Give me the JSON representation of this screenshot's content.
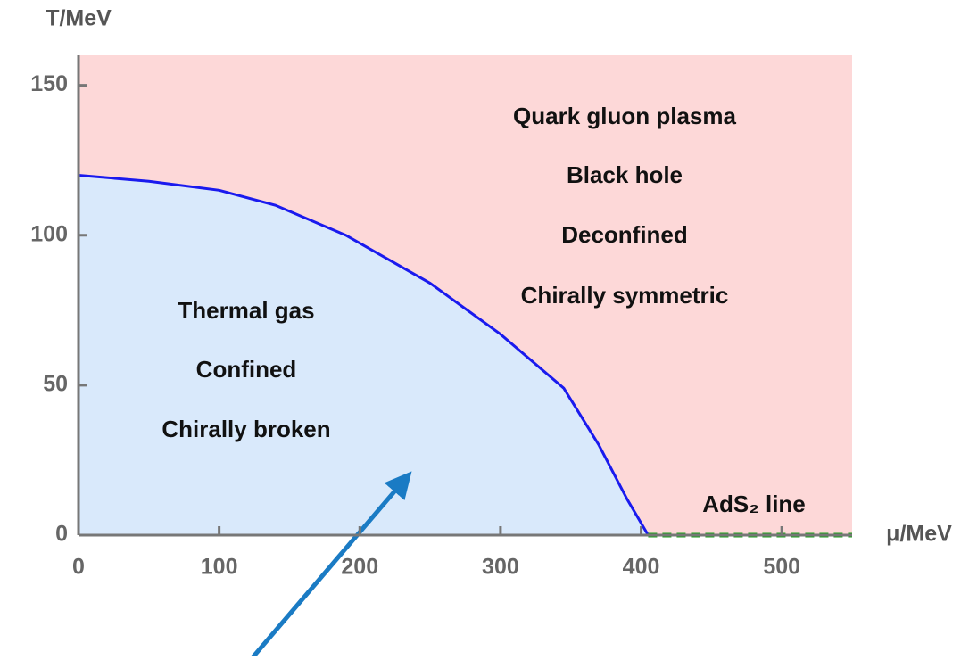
{
  "chart_data": {
    "type": "line",
    "x_label": "μ/MeV",
    "y_label": "T/MeV",
    "xlim": [
      0,
      550
    ],
    "ylim": [
      0,
      160
    ],
    "xticks": [
      0,
      100,
      200,
      300,
      400,
      500
    ],
    "yticks": [
      0,
      50,
      100,
      150
    ],
    "background_color": "#fdd8d8",
    "series": [
      {
        "color": "#1a1aee",
        "fill": "#d9e9fb",
        "x": [
          0,
          50,
          100,
          140,
          190,
          250,
          300,
          345,
          370,
          390,
          405
        ],
        "values": [
          120,
          118,
          115,
          110,
          100,
          84,
          67,
          49,
          30,
          12,
          0
        ]
      },
      {
        "color": "#1aa01a",
        "dashed": true,
        "x": [
          405,
          550
        ],
        "values": [
          0,
          0
        ]
      }
    ],
    "annotations": [
      "Quark gluon plasma",
      "Black hole",
      "Deconfined",
      "Chirally symmetric",
      "Thermal gas",
      "Confined",
      "Chirally broken",
      "AdS₂ line"
    ]
  }
}
